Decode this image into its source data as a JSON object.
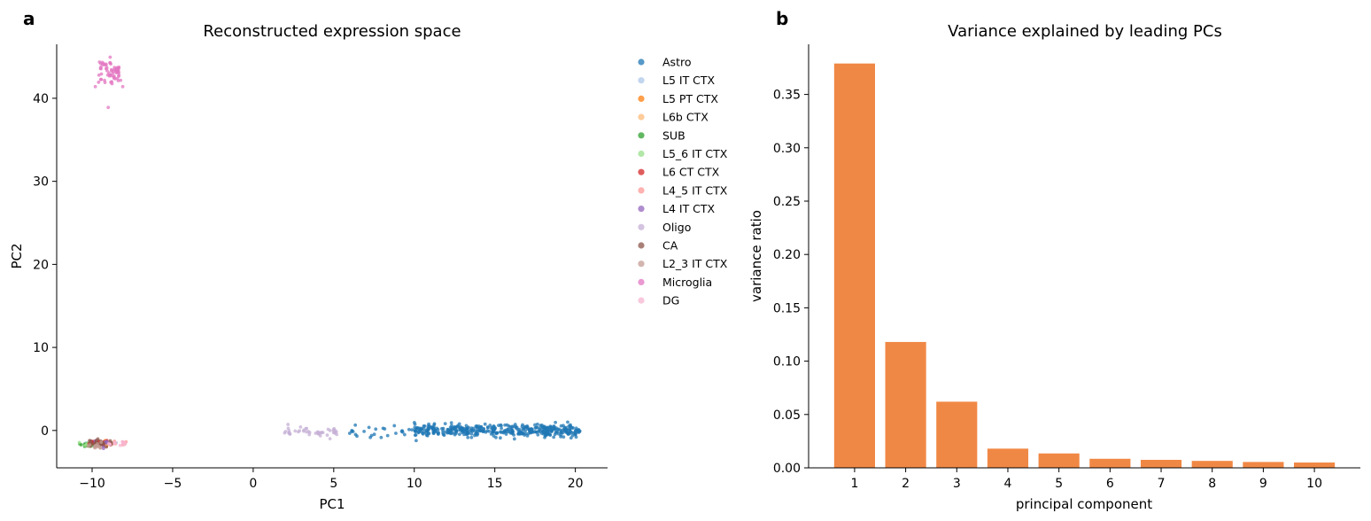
{
  "chart_data": [
    {
      "type": "scatter",
      "panel_label": "a",
      "title": "Reconstructed expression space",
      "xlabel": "PC1",
      "ylabel": "PC2",
      "xlim": [
        -12.2,
        22
      ],
      "ylim": [
        -4.5,
        46.5
      ],
      "xticks": [
        -10,
        -5,
        0,
        5,
        10,
        15,
        20
      ],
      "xtick_labels": [
        "−10",
        "−5",
        "0",
        "5",
        "10",
        "15",
        "20"
      ],
      "yticks": [
        0,
        10,
        20,
        30,
        40
      ],
      "ytick_labels": [
        "0",
        "10",
        "20",
        "30",
        "40"
      ],
      "grid": false,
      "legend_position": "outside-right",
      "series": [
        {
          "name": "Astro",
          "color": "#1f77b4",
          "clusters": [
            {
              "x_range": [
                10,
                20.3
              ],
              "y_center": 0.0,
              "y_spread": 0.35,
              "n": 420
            },
            {
              "x_range": [
                5.5,
                10
              ],
              "y_center": -0.2,
              "y_spread": 0.35,
              "n": 25
            }
          ]
        },
        {
          "name": "L5 IT CTX",
          "color": "#aec7e8",
          "clusters": [
            {
              "x_range": [
                -10.5,
                -8.5
              ],
              "y_center": -1.6,
              "y_spread": 0.2,
              "n": 10
            }
          ]
        },
        {
          "name": "L5 PT CTX",
          "color": "#ff7f0e",
          "clusters": [
            {
              "x_range": [
                -10.3,
                -8.7
              ],
              "y_center": -1.6,
              "y_spread": 0.2,
              "n": 8
            }
          ]
        },
        {
          "name": "L6b CTX",
          "color": "#ffbb78",
          "clusters": [
            {
              "x_range": [
                -10.3,
                -8.7
              ],
              "y_center": -1.6,
              "y_spread": 0.2,
              "n": 8
            }
          ]
        },
        {
          "name": "SUB",
          "color": "#2ca02c",
          "clusters": [
            {
              "x_range": [
                -10.8,
                -9.5
              ],
              "y_center": -1.7,
              "y_spread": 0.2,
              "n": 12
            }
          ]
        },
        {
          "name": "L5_6 IT CTX",
          "color": "#98df8a",
          "clusters": [
            {
              "x_range": [
                -10.8,
                -9.5
              ],
              "y_center": -1.7,
              "y_spread": 0.2,
              "n": 10
            }
          ]
        },
        {
          "name": "L6 CT CTX",
          "color": "#d62728",
          "clusters": [
            {
              "x_range": [
                -10.2,
                -8.8
              ],
              "y_center": -1.5,
              "y_spread": 0.2,
              "n": 14
            }
          ]
        },
        {
          "name": "L4_5 IT CTX",
          "color": "#ff9896",
          "clusters": [
            {
              "x_range": [
                -9.0,
                -7.8
              ],
              "y_center": -1.6,
              "y_spread": 0.15,
              "n": 12
            }
          ]
        },
        {
          "name": "L4 IT CTX",
          "color": "#9467bd",
          "clusters": [
            {
              "x_range": [
                -10.0,
                -8.8
              ],
              "y_center": -1.6,
              "y_spread": 0.2,
              "n": 10
            }
          ]
        },
        {
          "name": "Oligo",
          "color": "#c5b0d5",
          "clusters": [
            {
              "x_range": [
                1.8,
                5.2
              ],
              "y_center": -0.2,
              "y_spread": 0.3,
              "n": 45
            }
          ]
        },
        {
          "name": "CA",
          "color": "#8c564b",
          "clusters": [
            {
              "x_range": [
                -10.2,
                -8.7
              ],
              "y_center": -1.5,
              "y_spread": 0.2,
              "n": 25
            }
          ]
        },
        {
          "name": "L2_3 IT CTX",
          "color": "#c49c94",
          "clusters": [
            {
              "x_range": [
                -10.3,
                -9.3
              ],
              "y_center": -1.9,
              "y_spread": 0.2,
              "n": 14
            }
          ]
        },
        {
          "name": "Microglia",
          "color": "#e377c2",
          "clusters": [
            {
              "x_range": [
                -9.6,
                -8.2
              ],
              "y_center": 43.2,
              "y_spread": 0.7,
              "n": 60
            }
          ],
          "outliers": [
            [
              -9.8,
              41.4
            ],
            [
              -8.1,
              41.4
            ],
            [
              -9.2,
              41.9
            ],
            [
              -9.0,
              38.9
            ]
          ]
        },
        {
          "name": "DG",
          "color": "#f7b6d2",
          "clusters": [
            {
              "x_range": [
                -9.0,
                -7.8
              ],
              "y_center": -1.6,
              "y_spread": 0.15,
              "n": 12
            }
          ]
        }
      ]
    },
    {
      "type": "bar",
      "panel_label": "b",
      "title": "Variance explained by leading PCs",
      "xlabel": "principal component",
      "ylabel": "variance ratio",
      "categories": [
        "1",
        "2",
        "3",
        "4",
        "5",
        "6",
        "7",
        "8",
        "9",
        "10"
      ],
      "values": [
        0.379,
        0.118,
        0.062,
        0.018,
        0.0135,
        0.0085,
        0.0075,
        0.0065,
        0.0055,
        0.005
      ],
      "ylim": [
        0,
        0.397
      ],
      "yticks": [
        0,
        0.05,
        0.1,
        0.15,
        0.2,
        0.25,
        0.3,
        0.35
      ],
      "ytick_labels": [
        "0.00",
        "0.05",
        "0.10",
        "0.15",
        "0.20",
        "0.25",
        "0.30",
        "0.35"
      ],
      "bar_color": "#f08845",
      "grid": false
    }
  ]
}
